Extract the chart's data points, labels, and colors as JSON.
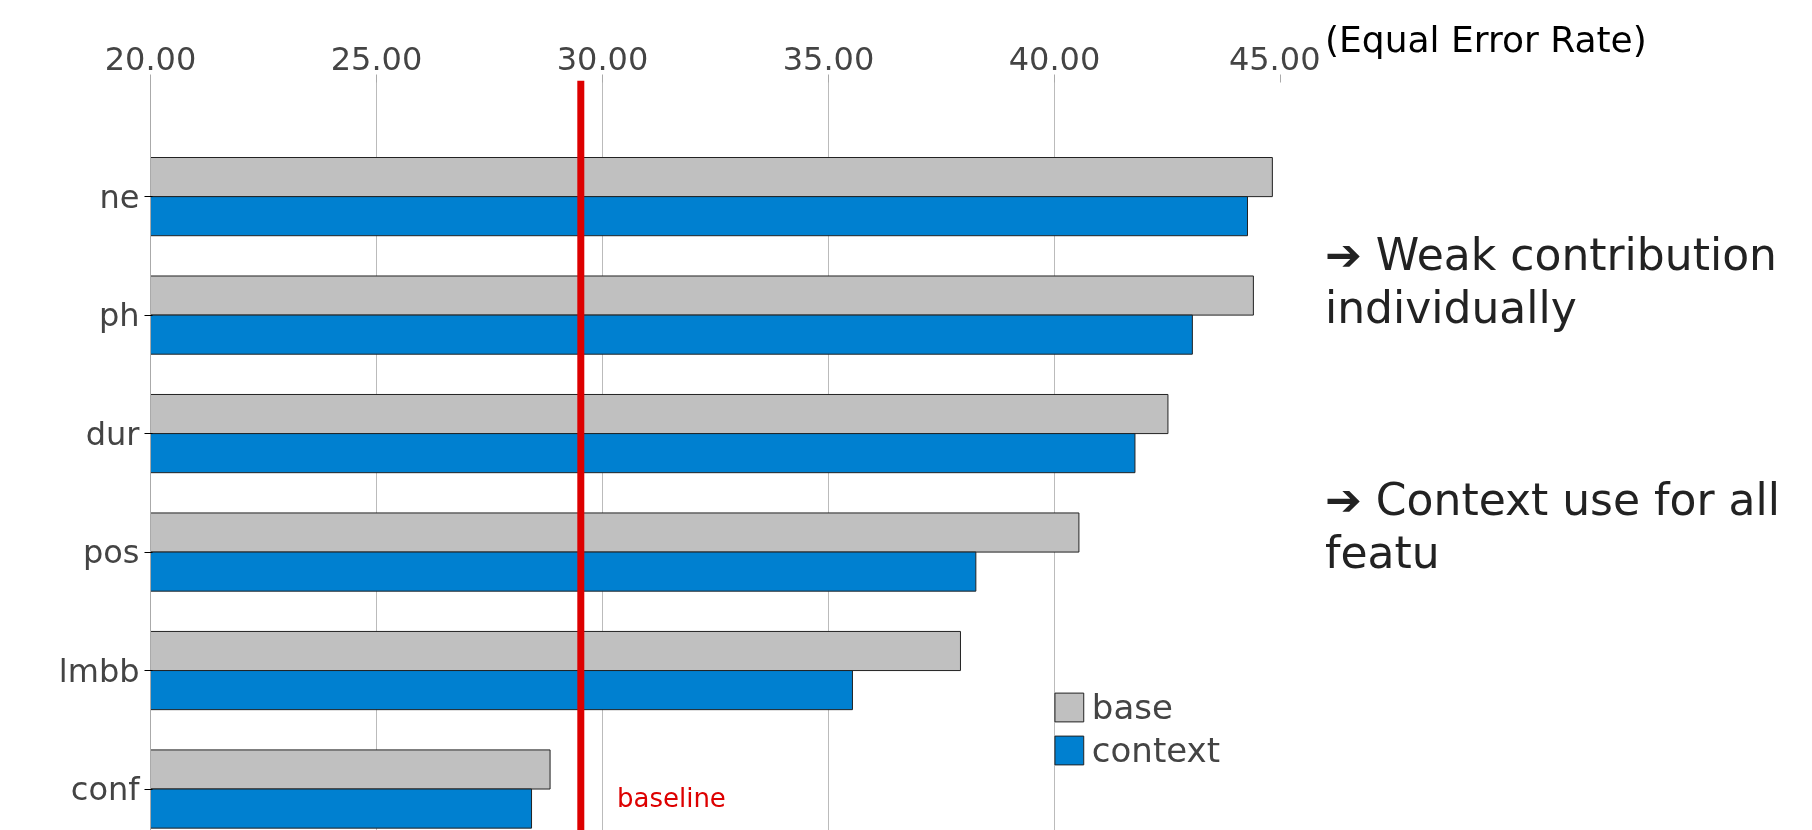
{
  "chart_data": {
    "type": "bar",
    "orientation": "horizontal",
    "categories": [
      "ne",
      "ph",
      "dur",
      "pos",
      "lmbb",
      "conf"
    ],
    "series": [
      {
        "name": "base",
        "color": "#c0c0c0",
        "values": [
          44.82,
          44.4,
          42.51,
          40.54,
          37.92,
          28.84
        ]
      },
      {
        "name": "context",
        "color": "#0080d0",
        "values": [
          44.27,
          43.05,
          41.78,
          38.26,
          35.53,
          28.43
        ]
      }
    ],
    "xlim": [
      20,
      45
    ],
    "xticks": [
      {
        "value": 20,
        "label": "20.00"
      },
      {
        "value": 25,
        "label": "25.00"
      },
      {
        "value": 30,
        "label": "30.00"
      },
      {
        "value": 35,
        "label": "35.00"
      },
      {
        "value": 40,
        "label": "40.00"
      },
      {
        "value": 45,
        "label": "45.00"
      }
    ],
    "xlabel": "(Equal Error Rate)",
    "grid": "x",
    "legend": "bottom right",
    "ref_lines": [
      {
        "axis": "x",
        "value": 29.52,
        "label": "baseline",
        "color": "#dd0000"
      }
    ],
    "annotations": [
      "➔ Weak contribution individually",
      "➔ Context use for all featu"
    ]
  }
}
